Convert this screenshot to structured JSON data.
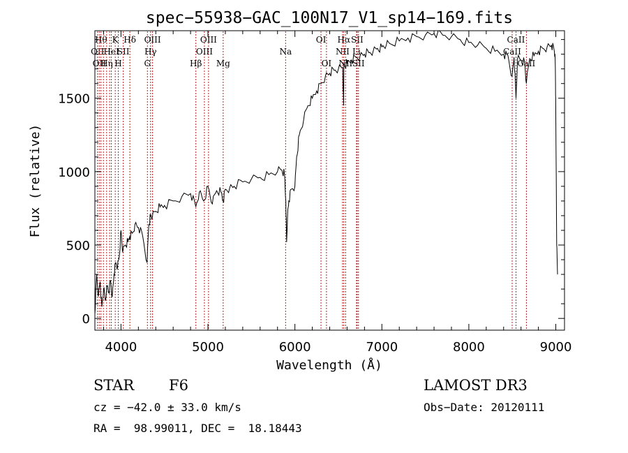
{
  "chart_data": {
    "type": "line",
    "title": "spec−55938−GAC_100N17_V1_sp14−169.fits",
    "xlabel": "Wavelength (Å)",
    "ylabel": "Flux (relative)",
    "xlim": [
      3700,
      9100
    ],
    "ylim": [
      -80,
      1960
    ],
    "xticks": [
      4000,
      5000,
      6000,
      7000,
      8000,
      9000
    ],
    "yticks": [
      0,
      500,
      1000,
      1500
    ],
    "grid": false,
    "series": [
      {
        "name": "flux",
        "x": [
          3700,
          3720,
          3740,
          3760,
          3780,
          3800,
          3820,
          3840,
          3860,
          3880,
          3900,
          3920,
          3940,
          3960,
          3980,
          4000,
          4020,
          4050,
          4080,
          4100,
          4130,
          4160,
          4200,
          4250,
          4300,
          4320,
          4340,
          4360,
          4400,
          4450,
          4500,
          4600,
          4700,
          4800,
          4860,
          4900,
          4950,
          5000,
          5050,
          5100,
          5150,
          5175,
          5200,
          5250,
          5300,
          5400,
          5500,
          5600,
          5700,
          5800,
          5850,
          5880,
          5895,
          5905,
          5915,
          5930,
          5960,
          6000,
          6020,
          6050,
          6100,
          6150,
          6200,
          6250,
          6300,
          6350,
          6400,
          6450,
          6500,
          6550,
          6560,
          6563,
          6570,
          6600,
          6650,
          6700,
          6750,
          6800,
          6850,
          6900,
          6950,
          7000,
          7050,
          7100,
          7200,
          7300,
          7400,
          7500,
          7600,
          7700,
          7800,
          7900,
          8000,
          8100,
          8200,
          8300,
          8400,
          8450,
          8498,
          8520,
          8542,
          8560,
          8600,
          8640,
          8662,
          8700,
          8750,
          8800,
          8850,
          8900,
          8950,
          8980,
          8990,
          8995,
          9000,
          9010,
          9020
        ],
        "values": [
          30,
          300,
          150,
          250,
          80,
          200,
          120,
          220,
          180,
          260,
          150,
          300,
          380,
          350,
          420,
          600,
          450,
          500,
          520,
          560,
          580,
          640,
          620,
          560,
          380,
          640,
          700,
          690,
          730,
          760,
          770,
          800,
          830,
          850,
          760,
          860,
          800,
          900,
          780,
          870,
          860,
          800,
          880,
          890,
          900,
          930,
          950,
          960,
          980,
          1000,
          1010,
          980,
          800,
          520,
          700,
          800,
          880,
          900,
          1100,
          1250,
          1350,
          1450,
          1500,
          1550,
          1600,
          1650,
          1670,
          1690,
          1700,
          1710,
          1450,
          1700,
          1720,
          1740,
          1760,
          1780,
          1790,
          1800,
          1810,
          1820,
          1840,
          1850,
          1860,
          1870,
          1890,
          1910,
          1920,
          1930,
          1940,
          1930,
          1920,
          1900,
          1880,
          1860,
          1840,
          1820,
          1800,
          1790,
          1650,
          1780,
          1500,
          1770,
          1760,
          1750,
          1600,
          1770,
          1790,
          1820,
          1840,
          1850,
          1860,
          1830,
          1800,
          1700,
          1400,
          500,
          300
        ]
      }
    ],
    "lines": [
      {
        "x": 3730,
        "label": "OII",
        "row": 2
      },
      {
        "x": 3750,
        "label": "OII",
        "row": 3
      },
      {
        "x": 3770,
        "label": "Hθ",
        "row": 1
      },
      {
        "x": 3798,
        "label": "",
        "row": 0
      },
      {
        "x": 3835,
        "label": "Hη",
        "row": 3
      },
      {
        "x": 3869,
        "label": "",
        "row": 0
      },
      {
        "x": 3889,
        "label": "HeI",
        "row": 2
      },
      {
        "x": 3934,
        "label": "K",
        "row": 1
      },
      {
        "x": 3969,
        "label": "H",
        "row": 3
      },
      {
        "x": 4026,
        "label": "SII",
        "row": 2
      },
      {
        "x": 4102,
        "label": "Hδ",
        "row": 1
      },
      {
        "x": 4304,
        "label": "G",
        "row": 3
      },
      {
        "x": 4340,
        "label": "Hγ",
        "row": 2
      },
      {
        "x": 4363,
        "label": "OIII",
        "row": 1
      },
      {
        "x": 4861,
        "label": "Hβ",
        "row": 3
      },
      {
        "x": 4959,
        "label": "OIII",
        "row": 2
      },
      {
        "x": 5007,
        "label": "OIII",
        "row": 1
      },
      {
        "x": 5175,
        "label": "Mg",
        "row": 3
      },
      {
        "x": 5893,
        "label": "Na",
        "row": 2
      },
      {
        "x": 6300,
        "label": "OI",
        "row": 1
      },
      {
        "x": 6363,
        "label": "OI",
        "row": 3
      },
      {
        "x": 6548,
        "label": "NII",
        "row": 2
      },
      {
        "x": 6563,
        "label": "Hα",
        "row": 1
      },
      {
        "x": 6583,
        "label": "NII",
        "row": 3
      },
      {
        "x": 6708,
        "label": "Li",
        "row": 2
      },
      {
        "x": 6716,
        "label": "SII",
        "row": 1
      },
      {
        "x": 6731,
        "label": "SII",
        "row": 3
      },
      {
        "x": 8498,
        "label": "CaII",
        "row": 2
      },
      {
        "x": 8542,
        "label": "CaII",
        "row": 1
      },
      {
        "x": 8662,
        "label": "CaII",
        "row": 3
      }
    ]
  },
  "info": {
    "object_class": "STAR",
    "subclass": "F6",
    "survey": "LAMOST DR3",
    "redshift_line": "cz = −42.0 ± 33.0 km/s",
    "obs_date": "Obs−Date: 20120111",
    "coords": "RA =  98.99011, DEC =  18.18443"
  },
  "colors": {
    "spectrum": "#000000",
    "line_marker": "#b22222",
    "axes": "#000000",
    "background": "#ffffff"
  }
}
